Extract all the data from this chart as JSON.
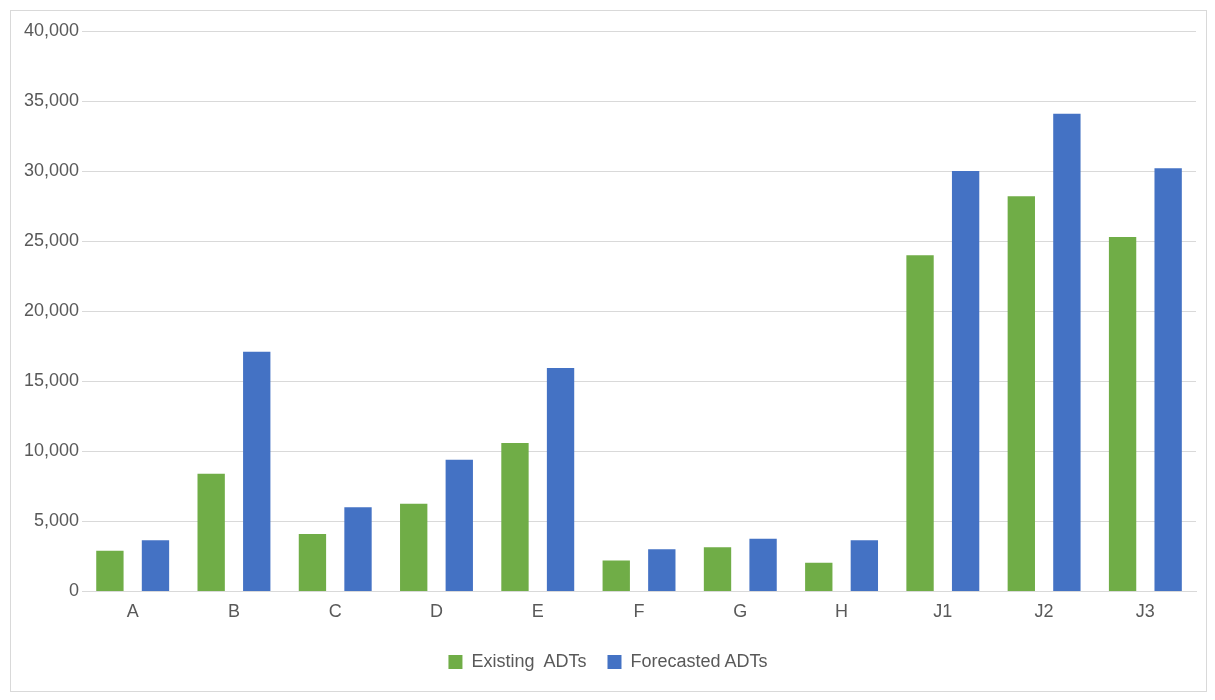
{
  "chart_data": {
    "type": "bar",
    "categories": [
      "A",
      "B",
      "C",
      "D",
      "E",
      "F",
      "G",
      "H",
      "J1",
      "J2",
      "J3"
    ],
    "series": [
      {
        "name": "Existing  ADTs",
        "color": "#70ad47",
        "values": [
          2900,
          8400,
          4100,
          6250,
          10600,
          2200,
          3150,
          2050,
          24000,
          28200,
          25300
        ]
      },
      {
        "name": "Forecasted ADTs",
        "color": "#4472c4",
        "values": [
          3650,
          17100,
          6000,
          9400,
          15950,
          3000,
          3750,
          3650,
          30000,
          34100,
          30200
        ]
      }
    ],
    "ylim": [
      0,
      40000
    ],
    "yticks": [
      {
        "value": 0,
        "label": "0"
      },
      {
        "value": 5000,
        "label": "5,000"
      },
      {
        "value": 10000,
        "label": "10,000"
      },
      {
        "value": 15000,
        "label": "15,000"
      },
      {
        "value": 20000,
        "label": "20,000"
      },
      {
        "value": 25000,
        "label": "25,000"
      },
      {
        "value": 30000,
        "label": "30,000"
      },
      {
        "value": 35000,
        "label": "35,000"
      },
      {
        "value": 40000,
        "label": "40,000"
      }
    ],
    "grid": "y",
    "legend": "bottom"
  }
}
